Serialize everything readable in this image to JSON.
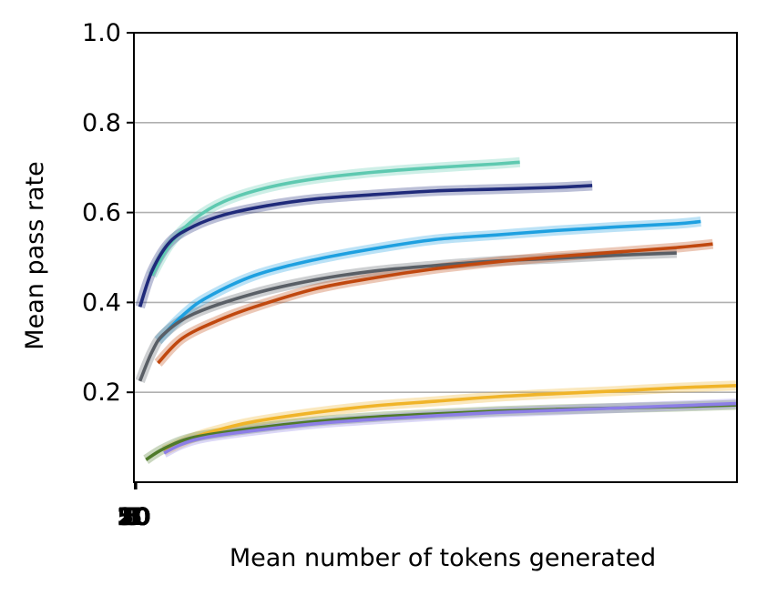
{
  "chart_data": {
    "type": "line",
    "xlabel": "Mean number of tokens generated",
    "ylabel": "Mean pass rate",
    "ylim": [
      0.0,
      1.0
    ],
    "xlim": [
      0,
      100
    ],
    "yticks": [
      "0.2",
      "0.4",
      "0.6",
      "0.8",
      "1.0"
    ],
    "xticks": [
      "1",
      "5",
      "10",
      "20",
      "50"
    ],
    "grid": "horizontal",
    "series": [
      {
        "color": "#5ec9b0",
        "x": [
          3,
          6,
          10,
          15,
          22,
          30,
          40,
          50,
          60,
          64
        ],
        "values": [
          0.46,
          0.53,
          0.585,
          0.625,
          0.655,
          0.675,
          0.69,
          0.7,
          0.708,
          0.712
        ]
      },
      {
        "color": "#1f2a7a",
        "x": [
          1,
          3,
          6,
          10,
          15,
          22,
          30,
          40,
          50,
          60,
          70,
          76
        ],
        "values": [
          0.39,
          0.47,
          0.535,
          0.57,
          0.595,
          0.615,
          0.63,
          0.64,
          0.648,
          0.652,
          0.656,
          0.66
        ]
      },
      {
        "color": "#1ea0e0",
        "x": [
          4,
          8,
          12,
          20,
          30,
          40,
          50,
          60,
          70,
          80,
          90,
          94
        ],
        "values": [
          0.315,
          0.37,
          0.41,
          0.46,
          0.495,
          0.52,
          0.54,
          0.55,
          0.56,
          0.568,
          0.575,
          0.58
        ]
      },
      {
        "color": "#5a5f66",
        "x": [
          1,
          3,
          5,
          10,
          20,
          30,
          40,
          50,
          60,
          70,
          80,
          90
        ],
        "values": [
          0.225,
          0.29,
          0.33,
          0.375,
          0.42,
          0.45,
          0.47,
          0.482,
          0.492,
          0.498,
          0.505,
          0.51
        ]
      },
      {
        "color": "#c0480f",
        "x": [
          4,
          8,
          14,
          20,
          30,
          40,
          50,
          60,
          70,
          80,
          90,
          96
        ],
        "values": [
          0.265,
          0.32,
          0.36,
          0.39,
          0.43,
          0.455,
          0.475,
          0.49,
          0.502,
          0.512,
          0.522,
          0.53
        ]
      },
      {
        "color": "#f0b429",
        "x": [
          5,
          10,
          15,
          20,
          30,
          40,
          50,
          60,
          70,
          80,
          90,
          100
        ],
        "values": [
          0.07,
          0.1,
          0.12,
          0.135,
          0.155,
          0.17,
          0.18,
          0.19,
          0.197,
          0.203,
          0.21,
          0.215
        ]
      },
      {
        "color": "#4f7a2a",
        "x": [
          2,
          5,
          10,
          20,
          30,
          40,
          50,
          60,
          70,
          80,
          90,
          100
        ],
        "values": [
          0.05,
          0.075,
          0.1,
          0.12,
          0.135,
          0.145,
          0.152,
          0.158,
          0.162,
          0.165,
          0.168,
          0.172
        ]
      },
      {
        "color": "#8c7ee6",
        "x": [
          5,
          8,
          12,
          20,
          30,
          40,
          50,
          60,
          70,
          80,
          90,
          100
        ],
        "values": [
          0.065,
          0.085,
          0.1,
          0.115,
          0.13,
          0.14,
          0.148,
          0.155,
          0.16,
          0.165,
          0.17,
          0.175
        ]
      }
    ]
  }
}
